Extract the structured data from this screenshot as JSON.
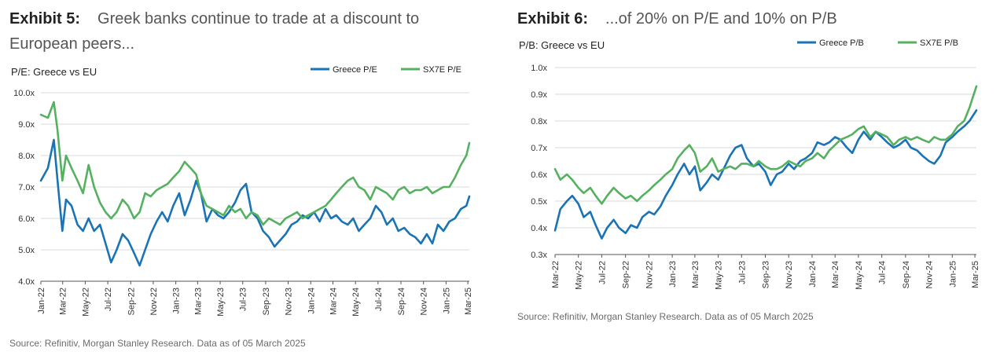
{
  "exhibit5": {
    "number": "Exhibit 5:",
    "heading": "Greek banks continue to trade at a discount to European peers...",
    "source": "Source: Refinitiv, Morgan Stanley Research. Data as of 05 March 2025"
  },
  "exhibit6": {
    "number": "Exhibit 6:",
    "heading": "...of 20% on P/E and 10% on P/B",
    "source": "Source: Refinitiv, Morgan Stanley Research. Data as of 05 March 2025"
  },
  "colors": {
    "greece": "#1a73b5",
    "sx7e": "#55b160",
    "grid": "#d9d9d9",
    "axis": "#555555"
  },
  "chart_data": [
    {
      "type": "line",
      "title": "P/E: Greece vs EU",
      "ylim": [
        4.0,
        10.0
      ],
      "yticks": [
        "10.0x",
        "9.0x",
        "8.0x",
        "7.0x",
        "6.0x",
        "5.0x",
        "4.0x"
      ],
      "ytick_values": [
        10,
        9,
        8,
        7,
        6,
        5,
        4
      ],
      "xlim": [
        "2022-01-01",
        "2025-03-05"
      ],
      "xticks": [
        "Jan-22",
        "Mar-22",
        "May-22",
        "Jul-22",
        "Sep-22",
        "Nov-22",
        "Jan-23",
        "Mar-23",
        "May-23",
        "Jul-23",
        "Sep-23",
        "Nov-23",
        "Jan-24",
        "Mar-24",
        "May-24",
        "Jul-24",
        "Sep-24",
        "Nov-24",
        "Jan-25",
        "Mar-25"
      ],
      "legend_position": "top-right",
      "grid": "horizontal",
      "series": [
        {
          "name": "Greece P/E",
          "color_key": "greece",
          "x": [
            "2022-01-01",
            "2022-01-20",
            "2022-02-05",
            "2022-02-15",
            "2022-02-28",
            "2022-03-10",
            "2022-03-25",
            "2022-04-10",
            "2022-04-25",
            "2022-05-10",
            "2022-05-25",
            "2022-06-10",
            "2022-06-25",
            "2022-07-10",
            "2022-07-25",
            "2022-08-10",
            "2022-08-25",
            "2022-09-10",
            "2022-09-25",
            "2022-10-10",
            "2022-10-25",
            "2022-11-10",
            "2022-11-25",
            "2022-12-10",
            "2022-12-25",
            "2023-01-10",
            "2023-01-25",
            "2023-02-10",
            "2023-02-25",
            "2023-03-10",
            "2023-03-25",
            "2023-04-10",
            "2023-04-25",
            "2023-05-10",
            "2023-05-25",
            "2023-06-10",
            "2023-06-25",
            "2023-07-10",
            "2023-07-25",
            "2023-08-10",
            "2023-08-25",
            "2023-09-10",
            "2023-09-25",
            "2023-10-10",
            "2023-10-25",
            "2023-11-10",
            "2023-11-25",
            "2023-12-10",
            "2023-12-25",
            "2024-01-10",
            "2024-01-25",
            "2024-02-10",
            "2024-02-25",
            "2024-03-10",
            "2024-03-25",
            "2024-04-10",
            "2024-04-25",
            "2024-05-10",
            "2024-05-25",
            "2024-06-10",
            "2024-06-25",
            "2024-07-10",
            "2024-07-25",
            "2024-08-10",
            "2024-08-25",
            "2024-09-10",
            "2024-09-25",
            "2024-10-10",
            "2024-10-25",
            "2024-11-10",
            "2024-11-25",
            "2024-12-10",
            "2024-12-25",
            "2025-01-10",
            "2025-01-25",
            "2025-02-10",
            "2025-02-25",
            "2025-03-05"
          ],
          "y": [
            7.2,
            7.6,
            8.5,
            7.2,
            5.6,
            6.6,
            6.4,
            5.8,
            5.6,
            6.0,
            5.6,
            5.8,
            5.2,
            4.6,
            5.0,
            5.5,
            5.3,
            4.9,
            4.5,
            5.0,
            5.5,
            5.9,
            6.2,
            5.9,
            6.4,
            6.8,
            6.1,
            6.6,
            7.2,
            6.8,
            5.9,
            6.3,
            6.1,
            6.0,
            6.2,
            6.5,
            6.9,
            7.1,
            6.2,
            6.0,
            5.6,
            5.4,
            5.1,
            5.3,
            5.5,
            5.8,
            5.9,
            6.1,
            6.0,
            6.2,
            5.9,
            6.3,
            6.0,
            6.1,
            5.9,
            5.8,
            6.0,
            5.6,
            5.8,
            6.0,
            6.4,
            6.2,
            5.8,
            6.0,
            5.6,
            5.7,
            5.5,
            5.4,
            5.2,
            5.5,
            5.2,
            5.8,
            5.6,
            5.9,
            6.0,
            6.3,
            6.4,
            6.7
          ]
        },
        {
          "name": "SX7E P/E",
          "color_key": "sx7e",
          "x": [
            "2022-01-01",
            "2022-01-20",
            "2022-02-05",
            "2022-02-15",
            "2022-02-28",
            "2022-03-10",
            "2022-03-25",
            "2022-04-10",
            "2022-04-25",
            "2022-05-10",
            "2022-05-25",
            "2022-06-10",
            "2022-06-25",
            "2022-07-10",
            "2022-07-25",
            "2022-08-10",
            "2022-08-25",
            "2022-09-10",
            "2022-09-25",
            "2022-10-10",
            "2022-10-25",
            "2022-11-10",
            "2022-11-25",
            "2022-12-10",
            "2022-12-25",
            "2023-01-10",
            "2023-01-25",
            "2023-02-10",
            "2023-02-25",
            "2023-03-10",
            "2023-03-25",
            "2023-04-10",
            "2023-04-25",
            "2023-05-10",
            "2023-05-25",
            "2023-06-10",
            "2023-06-25",
            "2023-07-10",
            "2023-07-25",
            "2023-08-10",
            "2023-08-25",
            "2023-09-10",
            "2023-09-25",
            "2023-10-10",
            "2023-10-25",
            "2023-11-10",
            "2023-11-25",
            "2023-12-10",
            "2023-12-25",
            "2024-01-10",
            "2024-01-25",
            "2024-02-10",
            "2024-02-25",
            "2024-03-10",
            "2024-03-25",
            "2024-04-10",
            "2024-04-25",
            "2024-05-10",
            "2024-05-25",
            "2024-06-10",
            "2024-06-25",
            "2024-07-10",
            "2024-07-25",
            "2024-08-10",
            "2024-08-25",
            "2024-09-10",
            "2024-09-25",
            "2024-10-10",
            "2024-10-25",
            "2024-11-10",
            "2024-11-25",
            "2024-12-10",
            "2024-12-25",
            "2025-01-10",
            "2025-01-25",
            "2025-02-10",
            "2025-02-25",
            "2025-03-05"
          ],
          "y": [
            9.3,
            9.2,
            9.7,
            8.8,
            7.2,
            8.0,
            7.6,
            7.2,
            6.8,
            7.7,
            7.0,
            6.5,
            6.2,
            6.0,
            6.2,
            6.6,
            6.4,
            6.0,
            6.2,
            6.8,
            6.7,
            6.9,
            7.0,
            7.1,
            7.3,
            7.5,
            7.8,
            7.6,
            7.4,
            6.8,
            6.4,
            6.3,
            6.2,
            6.1,
            6.4,
            6.2,
            6.3,
            6.0,
            6.2,
            6.1,
            5.8,
            6.0,
            5.9,
            5.8,
            6.0,
            6.1,
            6.2,
            6.0,
            6.1,
            6.2,
            6.3,
            6.4,
            6.6,
            6.8,
            7.0,
            7.2,
            7.3,
            7.0,
            6.9,
            6.6,
            7.0,
            6.9,
            6.8,
            6.6,
            6.9,
            7.0,
            6.8,
            6.9,
            6.9,
            7.0,
            6.8,
            6.9,
            7.0,
            7.0,
            7.3,
            7.7,
            8.0,
            8.4
          ]
        }
      ]
    },
    {
      "type": "line",
      "title": "P/B: Greece vs EU",
      "ylim": [
        0.3,
        1.0
      ],
      "yticks": [
        "1.0x",
        "0.9x",
        "0.8x",
        "0.7x",
        "0.6x",
        "0.5x",
        "0.4x",
        "0.3x"
      ],
      "ytick_values": [
        1.0,
        0.9,
        0.8,
        0.7,
        0.6,
        0.5,
        0.4,
        0.3
      ],
      "xlim": [
        "2022-03-01",
        "2025-03-05"
      ],
      "xticks": [
        "Mar-22",
        "May-22",
        "Jul-22",
        "Sep-22",
        "Nov-22",
        "Jan-23",
        "Mar-23",
        "May-23",
        "Jul-23",
        "Sep-23",
        "Nov-23",
        "Jan-24",
        "Mar-24",
        "May-24",
        "Jul-24",
        "Sep-24",
        "Nov-24",
        "Jan-25",
        "Mar-25"
      ],
      "legend_position": "top-right",
      "grid": "horizontal",
      "series": [
        {
          "name": "Greece P/B",
          "color_key": "greece",
          "x": [
            "2022-03-01",
            "2022-03-15",
            "2022-04-01",
            "2022-04-15",
            "2022-05-01",
            "2022-05-15",
            "2022-06-01",
            "2022-06-15",
            "2022-07-01",
            "2022-07-15",
            "2022-08-01",
            "2022-08-15",
            "2022-09-01",
            "2022-09-15",
            "2022-10-01",
            "2022-10-15",
            "2022-11-01",
            "2022-11-15",
            "2022-12-01",
            "2022-12-15",
            "2023-01-01",
            "2023-01-15",
            "2023-02-01",
            "2023-02-15",
            "2023-03-01",
            "2023-03-15",
            "2023-04-01",
            "2023-04-15",
            "2023-05-01",
            "2023-05-15",
            "2023-06-01",
            "2023-06-15",
            "2023-07-01",
            "2023-07-15",
            "2023-08-01",
            "2023-08-15",
            "2023-09-01",
            "2023-09-15",
            "2023-10-01",
            "2023-10-15",
            "2023-11-01",
            "2023-11-15",
            "2023-12-01",
            "2023-12-15",
            "2024-01-01",
            "2024-01-15",
            "2024-02-01",
            "2024-02-15",
            "2024-03-01",
            "2024-03-15",
            "2024-04-01",
            "2024-04-15",
            "2024-05-01",
            "2024-05-15",
            "2024-06-01",
            "2024-06-15",
            "2024-07-01",
            "2024-07-15",
            "2024-08-01",
            "2024-08-15",
            "2024-09-01",
            "2024-09-15",
            "2024-10-01",
            "2024-10-15",
            "2024-11-01",
            "2024-11-15",
            "2024-12-01",
            "2024-12-15",
            "2025-01-01",
            "2025-01-15",
            "2025-02-01",
            "2025-02-15",
            "2025-03-05"
          ],
          "y": [
            0.39,
            0.47,
            0.5,
            0.52,
            0.49,
            0.44,
            0.46,
            0.41,
            0.36,
            0.4,
            0.43,
            0.4,
            0.38,
            0.41,
            0.4,
            0.44,
            0.46,
            0.45,
            0.48,
            0.52,
            0.56,
            0.6,
            0.64,
            0.6,
            0.63,
            0.54,
            0.57,
            0.6,
            0.58,
            0.62,
            0.67,
            0.7,
            0.71,
            0.66,
            0.63,
            0.64,
            0.61,
            0.56,
            0.6,
            0.61,
            0.64,
            0.62,
            0.65,
            0.66,
            0.68,
            0.72,
            0.71,
            0.72,
            0.74,
            0.73,
            0.7,
            0.68,
            0.73,
            0.76,
            0.73,
            0.76,
            0.74,
            0.72,
            0.7,
            0.71,
            0.73,
            0.7,
            0.69,
            0.67,
            0.65,
            0.64,
            0.67,
            0.72,
            0.74,
            0.76,
            0.78,
            0.8,
            0.84
          ]
        },
        {
          "name": "SX7E P/B",
          "color_key": "sx7e",
          "x": [
            "2022-03-01",
            "2022-03-15",
            "2022-04-01",
            "2022-04-15",
            "2022-05-01",
            "2022-05-15",
            "2022-06-01",
            "2022-06-15",
            "2022-07-01",
            "2022-07-15",
            "2022-08-01",
            "2022-08-15",
            "2022-09-01",
            "2022-09-15",
            "2022-10-01",
            "2022-10-15",
            "2022-11-01",
            "2022-11-15",
            "2022-12-01",
            "2022-12-15",
            "2023-01-01",
            "2023-01-15",
            "2023-02-01",
            "2023-02-15",
            "2023-03-01",
            "2023-03-15",
            "2023-04-01",
            "2023-04-15",
            "2023-05-01",
            "2023-05-15",
            "2023-06-01",
            "2023-06-15",
            "2023-07-01",
            "2023-07-15",
            "2023-08-01",
            "2023-08-15",
            "2023-09-01",
            "2023-09-15",
            "2023-10-01",
            "2023-10-15",
            "2023-11-01",
            "2023-11-15",
            "2023-12-01",
            "2023-12-15",
            "2024-01-01",
            "2024-01-15",
            "2024-02-01",
            "2024-02-15",
            "2024-03-01",
            "2024-03-15",
            "2024-04-01",
            "2024-04-15",
            "2024-05-01",
            "2024-05-15",
            "2024-06-01",
            "2024-06-15",
            "2024-07-01",
            "2024-07-15",
            "2024-08-01",
            "2024-08-15",
            "2024-09-01",
            "2024-09-15",
            "2024-10-01",
            "2024-10-15",
            "2024-11-01",
            "2024-11-15",
            "2024-12-01",
            "2024-12-15",
            "2025-01-01",
            "2025-01-15",
            "2025-02-01",
            "2025-02-15",
            "2025-03-05"
          ],
          "y": [
            0.62,
            0.58,
            0.6,
            0.58,
            0.55,
            0.53,
            0.55,
            0.52,
            0.49,
            0.52,
            0.55,
            0.53,
            0.51,
            0.52,
            0.5,
            0.52,
            0.54,
            0.56,
            0.58,
            0.6,
            0.62,
            0.66,
            0.69,
            0.71,
            0.68,
            0.61,
            0.63,
            0.66,
            0.61,
            0.62,
            0.63,
            0.62,
            0.64,
            0.64,
            0.63,
            0.65,
            0.63,
            0.62,
            0.62,
            0.63,
            0.65,
            0.64,
            0.63,
            0.65,
            0.66,
            0.68,
            0.66,
            0.69,
            0.71,
            0.73,
            0.74,
            0.75,
            0.77,
            0.78,
            0.74,
            0.76,
            0.75,
            0.74,
            0.71,
            0.73,
            0.74,
            0.73,
            0.74,
            0.73,
            0.72,
            0.74,
            0.73,
            0.73,
            0.75,
            0.78,
            0.8,
            0.85,
            0.93
          ]
        }
      ]
    }
  ]
}
